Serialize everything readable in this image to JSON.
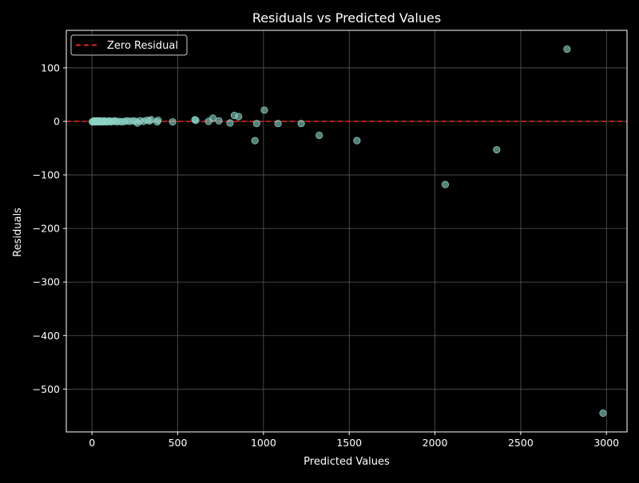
{
  "chart_data": {
    "type": "scatter",
    "title": "Residuals vs Predicted Values",
    "xlabel": "Predicted Values",
    "ylabel": "Residuals",
    "xlim": [
      -150,
      3120
    ],
    "ylim": [
      -580,
      170
    ],
    "xticks": [
      0,
      500,
      1000,
      1500,
      2000,
      2500,
      3000
    ],
    "yticks": [
      100,
      0,
      -100,
      -200,
      -300,
      -400,
      -500
    ],
    "ytick_labels": [
      "100",
      "0",
      "−100",
      "−200",
      "−300",
      "−400",
      "−500"
    ],
    "grid": true,
    "legend": {
      "position": "top-left",
      "entries": [
        "Zero Residual"
      ]
    },
    "reference_line": {
      "y": 0,
      "name": "Zero Residual",
      "color": "#d62728",
      "style": "dashed"
    },
    "series": [
      {
        "point_color": "#8dd3c7",
        "points": [
          [
            2,
            -1
          ],
          [
            6,
            0
          ],
          [
            10,
            -1
          ],
          [
            14,
            1
          ],
          [
            18,
            0
          ],
          [
            22,
            -1
          ],
          [
            26,
            0
          ],
          [
            30,
            1
          ],
          [
            35,
            -1
          ],
          [
            40,
            0
          ],
          [
            45,
            1
          ],
          [
            50,
            -1
          ],
          [
            55,
            0
          ],
          [
            60,
            0
          ],
          [
            66,
            -1
          ],
          [
            72,
            1
          ],
          [
            78,
            0
          ],
          [
            85,
            -1
          ],
          [
            92,
            0
          ],
          [
            100,
            1
          ],
          [
            108,
            -1
          ],
          [
            116,
            0
          ],
          [
            125,
            0
          ],
          [
            135,
            1
          ],
          [
            145,
            -1
          ],
          [
            160,
            0
          ],
          [
            175,
            -1
          ],
          [
            190,
            0
          ],
          [
            205,
            1
          ],
          [
            220,
            0
          ],
          [
            240,
            1
          ],
          [
            255,
            0
          ],
          [
            265,
            -3
          ],
          [
            280,
            1
          ],
          [
            300,
            0
          ],
          [
            320,
            2
          ],
          [
            335,
            1
          ],
          [
            345,
            3
          ],
          [
            380,
            -1
          ],
          [
            385,
            2
          ],
          [
            470,
            -1
          ],
          [
            600,
            3
          ],
          [
            605,
            2
          ],
          [
            680,
            0
          ],
          [
            705,
            6
          ],
          [
            740,
            1
          ],
          [
            805,
            -3
          ],
          [
            830,
            11
          ],
          [
            855,
            9
          ],
          [
            950,
            -36
          ],
          [
            960,
            -4
          ],
          [
            1005,
            21
          ],
          [
            1085,
            -4
          ],
          [
            1220,
            -4
          ],
          [
            1325,
            -26
          ],
          [
            1545,
            -36
          ],
          [
            2060,
            -118
          ],
          [
            2360,
            -53
          ],
          [
            2770,
            135
          ],
          [
            2980,
            -545
          ]
        ]
      }
    ],
    "colors": {
      "background": "#000000",
      "grid": "#5a5a5a",
      "axes": "#ffffff",
      "points": "#8dd3c7",
      "reference": "#d62728"
    }
  }
}
